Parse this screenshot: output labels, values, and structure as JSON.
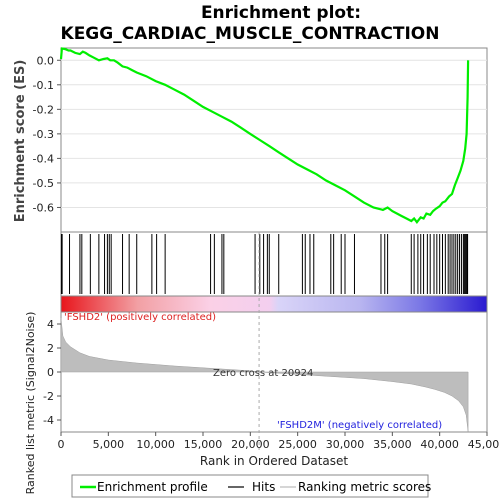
{
  "chart_data": {
    "type": "line",
    "title_line1": "Enrichment plot:",
    "title_line2": "KEGG_CARDIAC_MUSCLE_CONTRACTION",
    "ylabel_top": "Enrichment score (ES)",
    "ylabel_bottom": "Ranked list metric (Signal2Noise)",
    "xlabel": "Rank in Ordered Dataset",
    "xlim": [
      0,
      45000
    ],
    "ylim_es": [
      -0.7,
      0.05
    ],
    "ylim_metric": [
      -5,
      5
    ],
    "x_ticks": [
      0,
      5000,
      10000,
      15000,
      20000,
      25000,
      30000,
      35000,
      40000,
      45000
    ],
    "x_tick_labels": [
      "0",
      "5,000",
      "10,000",
      "15,000",
      "20,000",
      "25,000",
      "30,000",
      "35,000",
      "40,000",
      "45,000"
    ],
    "es_ticks": [
      0.0,
      -0.1,
      -0.2,
      -0.3,
      -0.4,
      -0.5,
      -0.6
    ],
    "es_tick_labels": [
      "0.0",
      "-0.1",
      "-0.2",
      "-0.3",
      "-0.4",
      "-0.5",
      "-0.6"
    ],
    "metric_ticks": [
      4,
      2,
      0,
      -2,
      -4
    ],
    "metric_tick_labels": [
      "4",
      "2",
      "0",
      "-2",
      "-4"
    ],
    "annotations": {
      "positive": "'FSHD2' (positively correlated)",
      "negative": "'FSHD2M' (negatively correlated)",
      "zero_cross": "Zero cross at 20924"
    },
    "zero_cross": 20924,
    "n_ranks": 43000,
    "series": [
      {
        "name": "Enrichment profile",
        "color": "#00ee00",
        "x": [
          0,
          100,
          400,
          800,
          1000,
          1500,
          2000,
          2300,
          2600,
          3000,
          3500,
          4000,
          4500,
          4900,
          5200,
          5600,
          6000,
          6500,
          7000,
          7500,
          8000,
          9000,
          10000,
          11000,
          12000,
          13000,
          14000,
          15000,
          16000,
          17000,
          18000,
          19000,
          20000,
          21000,
          22000,
          23000,
          24000,
          25000,
          26000,
          27000,
          28000,
          29000,
          30000,
          31000,
          32000,
          33000,
          34000,
          34500,
          35000,
          35500,
          36000,
          36500,
          37000,
          37300,
          37600,
          38000,
          38300,
          38600,
          39000,
          39300,
          39600,
          40000,
          40300,
          40600,
          41000,
          41300,
          41600,
          41900,
          42200,
          42500,
          42700,
          42850,
          42950,
          43000
        ],
        "y": [
          0.005,
          0.048,
          0.046,
          0.04,
          0.04,
          0.03,
          0.025,
          0.035,
          0.03,
          0.02,
          0.01,
          0.0,
          0.005,
          0.008,
          0.0,
          0.0,
          -0.01,
          -0.025,
          -0.03,
          -0.04,
          -0.05,
          -0.065,
          -0.085,
          -0.1,
          -0.12,
          -0.14,
          -0.165,
          -0.19,
          -0.21,
          -0.23,
          -0.25,
          -0.275,
          -0.3,
          -0.325,
          -0.35,
          -0.375,
          -0.4,
          -0.425,
          -0.445,
          -0.465,
          -0.49,
          -0.51,
          -0.53,
          -0.555,
          -0.58,
          -0.6,
          -0.61,
          -0.6,
          -0.615,
          -0.625,
          -0.635,
          -0.645,
          -0.655,
          -0.645,
          -0.66,
          -0.64,
          -0.645,
          -0.625,
          -0.63,
          -0.615,
          -0.605,
          -0.595,
          -0.58,
          -0.575,
          -0.555,
          -0.545,
          -0.51,
          -0.48,
          -0.45,
          -0.41,
          -0.36,
          -0.3,
          -0.15,
          0.0
        ]
      }
    ],
    "hits": [
      50,
      120,
      900,
      2000,
      2200,
      3100,
      4000,
      4600,
      4900,
      5100,
      5300,
      6500,
      7200,
      8000,
      9600,
      10100,
      11000,
      15800,
      16200,
      17000,
      17200,
      20500,
      21000,
      21400,
      21800,
      22000,
      23000,
      25500,
      25800,
      26300,
      26700,
      28500,
      28800,
      29600,
      30000,
      31000,
      33800,
      34200,
      34500,
      37000,
      37300,
      37700,
      38000,
      38300,
      38700,
      39000,
      39400,
      39700,
      40000,
      40300,
      40600,
      40900,
      41100,
      41300,
      41500,
      41700,
      41900,
      42100,
      42300,
      42500,
      42600,
      42700,
      42800,
      42900,
      42950
    ],
    "metric": {
      "x": [
        0,
        200,
        500,
        1000,
        2000,
        3000,
        5000,
        8000,
        12000,
        16000,
        20000,
        20924,
        24000,
        28000,
        32000,
        35000,
        37000,
        38500,
        39500,
        40500,
        41300,
        42000,
        42500,
        42800,
        43000
      ],
      "y": [
        4.5,
        3.0,
        2.5,
        2.1,
        1.6,
        1.3,
        1.0,
        0.75,
        0.5,
        0.3,
        0.1,
        0.0,
        -0.15,
        -0.35,
        -0.55,
        -0.8,
        -1.0,
        -1.25,
        -1.45,
        -1.7,
        -2.0,
        -2.4,
        -2.9,
        -3.6,
        -5.0
      ]
    },
    "legend": {
      "items": [
        {
          "label": "Enrichment profile",
          "color": "#00ee00"
        },
        {
          "label": "Hits",
          "color": "#000000"
        },
        {
          "label": "Ranking metric scores",
          "color": "#bbbbbb"
        }
      ]
    }
  }
}
